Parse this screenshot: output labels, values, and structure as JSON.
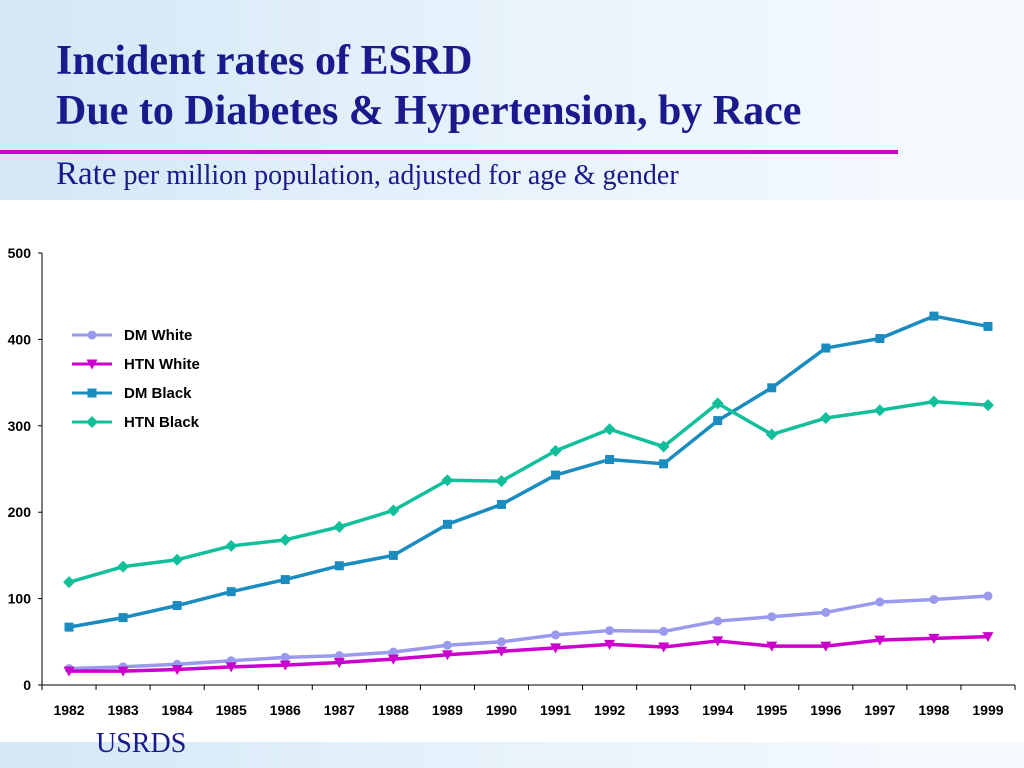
{
  "slide": {
    "title_line1": "Incident rates of ESRD",
    "title_line2": "Due to Diabetes & Hypertension, by Race",
    "subtitle_lead": "Rate",
    "subtitle_rest": " per million population, adjusted for age & gender",
    "source": "USRDS",
    "colors": {
      "title": "#1a1a8c",
      "divider": "#cc00cc",
      "band": "#d3e7f6"
    }
  },
  "chart_data": {
    "type": "line",
    "title": "",
    "xlabel": "",
    "ylabel": "",
    "ylim": [
      0,
      500
    ],
    "yticks": [
      0,
      100,
      200,
      300,
      400,
      500
    ],
    "x": [
      "1982",
      "1983",
      "1984",
      "1985",
      "1986",
      "1987",
      "1988",
      "1989",
      "1990",
      "1991",
      "1992",
      "1993",
      "1994",
      "1995",
      "1996",
      "1997",
      "1998",
      "1999"
    ],
    "grid": false,
    "legend_position": "upper-left",
    "series": [
      {
        "name": "DM White",
        "color": "#9999ee",
        "marker": "circle",
        "values": [
          19,
          21,
          24,
          28,
          32,
          34,
          38,
          46,
          50,
          58,
          63,
          62,
          74,
          79,
          84,
          96,
          99,
          103
        ]
      },
      {
        "name": "HTN White",
        "color": "#cc00cc",
        "marker": "triangle-down",
        "values": [
          16,
          16,
          18,
          21,
          23,
          26,
          30,
          35,
          39,
          43,
          47,
          44,
          51,
          45,
          45,
          52,
          54,
          56
        ]
      },
      {
        "name": "DM Black",
        "color": "#1a8cc0",
        "marker": "square",
        "values": [
          67,
          78,
          92,
          108,
          122,
          138,
          150,
          186,
          209,
          243,
          261,
          256,
          306,
          344,
          390,
          401,
          427,
          415
        ]
      },
      {
        "name": "HTN Black",
        "color": "#11c09a",
        "marker": "diamond",
        "values": [
          119,
          137,
          145,
          161,
          168,
          183,
          202,
          237,
          236,
          271,
          296,
          276,
          326,
          290,
          309,
          318,
          328,
          324
        ]
      }
    ]
  }
}
